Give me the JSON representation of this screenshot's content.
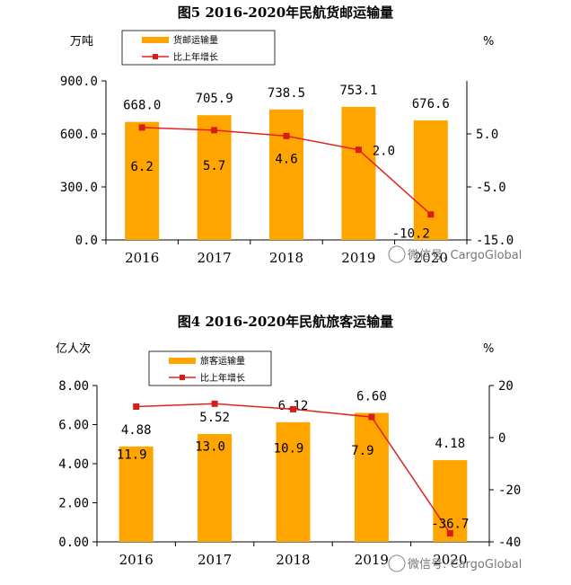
{
  "chart_data": [
    {
      "type": "bar",
      "title": "图5 2016-2020年民航货邮运输量",
      "left_unit": "万吨",
      "right_unit": "%",
      "categories": [
        "2016",
        "2017",
        "2018",
        "2019",
        "2020"
      ],
      "series": [
        {
          "name": "货邮运输量",
          "kind": "bar",
          "axis": "left",
          "values": [
            668.0,
            705.9,
            738.5,
            753.1,
            676.6
          ],
          "labels": [
            "668.0",
            "705.9",
            "738.5",
            "753.1",
            "676.6"
          ]
        },
        {
          "name": "比上年增长",
          "kind": "line",
          "axis": "right",
          "values": [
            6.2,
            5.7,
            4.6,
            2.0,
            -10.2
          ],
          "labels": [
            "6.2",
            "5.7",
            "4.6",
            "2.0",
            "-10.2"
          ]
        }
      ],
      "ylim_left": [
        0,
        900
      ],
      "yticks_left": [
        "0.0",
        "300.0",
        "600.0",
        "900.0"
      ],
      "ylim_right": [
        -15,
        15
      ],
      "yticks_right": [
        "-15.0",
        "-5.0",
        "5.0"
      ],
      "watermark": "微信号: CargoGlobal"
    },
    {
      "type": "bar",
      "title": "图4 2016-2020年民航旅客运输量",
      "left_unit": "亿人次",
      "right_unit": "%",
      "categories": [
        "2016",
        "2017",
        "2018",
        "2019",
        "2020"
      ],
      "series": [
        {
          "name": "旅客运输量",
          "kind": "bar",
          "axis": "left",
          "values": [
            4.88,
            5.52,
            6.12,
            6.6,
            4.18
          ],
          "labels": [
            "4.88",
            "5.52",
            "6.12",
            "6.60",
            "4.18"
          ]
        },
        {
          "name": "比上年增长",
          "kind": "line",
          "axis": "right",
          "values": [
            11.9,
            13.0,
            10.9,
            7.9,
            -36.7
          ],
          "labels": [
            "11.9",
            "13.0",
            "10.9",
            "7.9",
            "-36.7"
          ]
        }
      ],
      "ylim_left": [
        0,
        8
      ],
      "yticks_left": [
        "0.00",
        "2.00",
        "4.00",
        "6.00",
        "8.00"
      ],
      "ylim_right": [
        -40,
        20
      ],
      "yticks_right": [
        "-40",
        "-20",
        "0",
        "20"
      ],
      "watermark": "微信号: CargoGlobal"
    }
  ],
  "colors": {
    "bar": "#FFA500",
    "line": "#E0231C",
    "marker": "#D81B1B",
    "axis": "#000000"
  }
}
